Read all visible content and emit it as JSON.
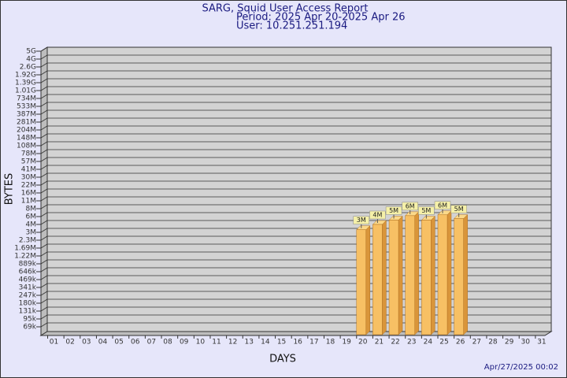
{
  "chart_data": {
    "type": "bar",
    "title": "SARG, Squid User Access Report",
    "subtitle": [
      "Period: 2025 Apr 20-2025 Apr 26",
      "User: 10.251.251.194"
    ],
    "x_label": "DAYS",
    "y_label": "BYTES",
    "footer": "Apr/27/2025 00:02",
    "categories": [
      "01",
      "02",
      "03",
      "04",
      "05",
      "06",
      "07",
      "08",
      "09",
      "10",
      "11",
      "12",
      "13",
      "14",
      "15",
      "16",
      "17",
      "18",
      "19",
      "20",
      "21",
      "22",
      "23",
      "24",
      "25",
      "26",
      "27",
      "28",
      "29",
      "30",
      "31"
    ],
    "values": [
      null,
      null,
      null,
      null,
      null,
      null,
      null,
      null,
      null,
      null,
      null,
      null,
      null,
      null,
      null,
      null,
      null,
      null,
      null,
      3300000,
      4000000,
      5000000,
      6200000,
      5000000,
      6400000,
      5400000,
      null,
      null,
      null,
      null,
      null
    ],
    "value_labels": [
      null,
      null,
      null,
      null,
      null,
      null,
      null,
      null,
      null,
      null,
      null,
      null,
      null,
      null,
      null,
      null,
      null,
      null,
      null,
      "3M",
      "4M",
      "5M",
      "6M",
      "5M",
      "6M",
      "5M",
      null,
      null,
      null,
      null,
      null
    ],
    "color": "#f7c064",
    "log_scale": true,
    "grid": true,
    "ylim": [
      50000,
      5000000000
    ],
    "yticks": [
      {
        "value": 69000,
        "label": "69k"
      },
      {
        "value": 95000,
        "label": "95k"
      },
      {
        "value": 131000,
        "label": "131k"
      },
      {
        "value": 180000,
        "label": "180k"
      },
      {
        "value": 247000,
        "label": "247k"
      },
      {
        "value": 341000,
        "label": "341k"
      },
      {
        "value": 469000,
        "label": "469k"
      },
      {
        "value": 646000,
        "label": "646k"
      },
      {
        "value": 889000,
        "label": "889k"
      },
      {
        "value": 1220000,
        "label": "1.22M"
      },
      {
        "value": 1690000,
        "label": "1.69M"
      },
      {
        "value": 2300000,
        "label": "2.3M"
      },
      {
        "value": 3000000,
        "label": "3M"
      },
      {
        "value": 4000000,
        "label": "4M"
      },
      {
        "value": 6000000,
        "label": "6M"
      },
      {
        "value": 8000000,
        "label": "8M"
      },
      {
        "value": 11000000,
        "label": "11M"
      },
      {
        "value": 16000000,
        "label": "16M"
      },
      {
        "value": 22000000,
        "label": "22M"
      },
      {
        "value": 30000000,
        "label": "30M"
      },
      {
        "value": 41000000,
        "label": "41M"
      },
      {
        "value": 57000000,
        "label": "57M"
      },
      {
        "value": 78000000,
        "label": "78M"
      },
      {
        "value": 108000000,
        "label": "108M"
      },
      {
        "value": 148000000,
        "label": "148M"
      },
      {
        "value": 204000000,
        "label": "204M"
      },
      {
        "value": 281000000,
        "label": "281M"
      },
      {
        "value": 387000000,
        "label": "387M"
      },
      {
        "value": 533000000,
        "label": "533M"
      },
      {
        "value": 734000000,
        "label": "734M"
      },
      {
        "value": 1010000000,
        "label": "1.01G"
      },
      {
        "value": 1390000000,
        "label": "1.39G"
      },
      {
        "value": 1920000000,
        "label": "1.92G"
      },
      {
        "value": 2600000000,
        "label": "2.6G"
      },
      {
        "value": 4000000000,
        "label": "4G"
      },
      {
        "value": 5000000000,
        "label": "5G"
      }
    ]
  }
}
